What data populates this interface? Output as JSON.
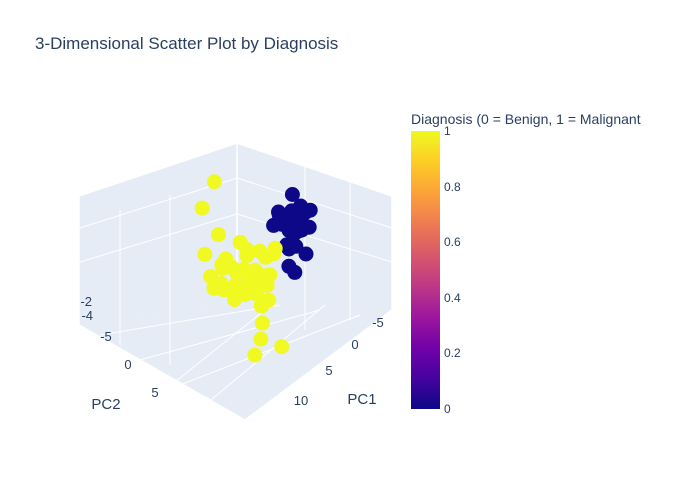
{
  "chart_data": {
    "type": "scatter3d",
    "title": "3-Dimensional Scatter Plot by Diagnosis",
    "axes": {
      "x": {
        "label": "PC1",
        "ticks": [
          "-5",
          "0",
          "5",
          "10"
        ]
      },
      "y": {
        "label": "PC2",
        "ticks": [
          "-5",
          "0",
          "5"
        ]
      },
      "z": {
        "label": "",
        "ticks": [
          "-4",
          "-2"
        ]
      }
    },
    "colorbar": {
      "title": "Diagnosis (0 = Benign, 1 = Malignant",
      "range": [
        0,
        1
      ],
      "ticks": [
        "0",
        "0.2",
        "0.4",
        "0.6",
        "0.8",
        "1"
      ],
      "colorscale": "plasma"
    },
    "series": [
      {
        "name": "",
        "value": 0,
        "color": "#0d0887",
        "points": [
          [
            -1.5,
            -4.5,
            -0.5
          ],
          [
            -2,
            -5,
            0
          ],
          [
            -1,
            -4,
            0.5
          ],
          [
            -2.5,
            -4,
            -0.3
          ],
          [
            -1.2,
            -5.5,
            0.2
          ],
          [
            -0.5,
            -4.8,
            -0.4
          ],
          [
            -1.8,
            -3.5,
            0.8
          ],
          [
            -2.8,
            -5.2,
            0.3
          ],
          [
            -0.2,
            -5.5,
            -0.2
          ],
          [
            -1,
            -6,
            0.6
          ],
          [
            0,
            -4,
            -1.2
          ],
          [
            -3.2,
            -4.6,
            -0.8
          ],
          [
            -1.6,
            -5.8,
            1
          ],
          [
            -2.2,
            -3,
            0
          ],
          [
            0.4,
            -5,
            0.1
          ],
          [
            -1.4,
            -4.2,
            -1.5
          ],
          [
            -0.8,
            -6.5,
            -0.5
          ],
          [
            -2.6,
            -6,
            -0.1
          ],
          [
            -3,
            -3.8,
            0.5
          ],
          [
            0.8,
            -4.5,
            -0.8
          ],
          [
            1.5,
            -3.5,
            -1.8
          ],
          [
            2,
            -4,
            -2.2
          ],
          [
            1.2,
            -5.5,
            -1.5
          ],
          [
            -3.5,
            -5.5,
            1.2
          ],
          [
            -2,
            -7,
            0.2
          ]
        ]
      },
      {
        "name": "",
        "value": 1,
        "color": "#f0f921",
        "points": [
          [
            3,
            2,
            0
          ],
          [
            4,
            3,
            0.5
          ],
          [
            5,
            1,
            -0.5
          ],
          [
            2,
            4,
            0.2
          ],
          [
            6,
            2,
            1
          ],
          [
            3.5,
            0,
            -0.8
          ],
          [
            4.5,
            5,
            0.3
          ],
          [
            2.5,
            1.5,
            1.2
          ],
          [
            5.5,
            3.5,
            -0.2
          ],
          [
            3,
            3,
            -1
          ],
          [
            6.5,
            0.5,
            0.4
          ],
          [
            4,
            -1,
            0.8
          ],
          [
            2,
            2.5,
            -0.5
          ],
          [
            7,
            2.5,
            0.1
          ],
          [
            5,
            4,
            1.5
          ],
          [
            3.8,
            1,
            0
          ],
          [
            4.2,
            2.2,
            -1.4
          ],
          [
            1.5,
            3.5,
            0.6
          ],
          [
            5.8,
            1.5,
            -0.9
          ],
          [
            3.2,
            4.5,
            1.1
          ],
          [
            8,
            1,
            0.5
          ],
          [
            2.8,
            -0.5,
            0.2
          ],
          [
            4.8,
            0.8,
            1.8
          ],
          [
            6,
            4,
            -0.6
          ],
          [
            1,
            1,
            0
          ],
          [
            3.6,
            5.5,
            -0.3
          ],
          [
            7.5,
            3,
            1.2
          ],
          [
            2.2,
            0.5,
            -1.2
          ],
          [
            5.2,
            -0.2,
            -0.1
          ],
          [
            4,
            6,
            0.9
          ],
          [
            9,
            2,
            -0.4
          ],
          [
            1.8,
            2,
            1.6
          ],
          [
            6.8,
            1.2,
            -1.5
          ],
          [
            3,
            -1.5,
            0.7
          ],
          [
            5.5,
            5,
            0.2
          ],
          [
            8.5,
            3.5,
            0.9
          ],
          [
            10,
            1.5,
            0.3
          ],
          [
            11,
            2.5,
            -0.8
          ],
          [
            12,
            3,
            -1.5
          ],
          [
            2,
            6,
            1.8
          ],
          [
            0.5,
            4,
            2.2
          ],
          [
            -2,
            5,
            3.5
          ],
          [
            -4,
            3,
            4.2
          ],
          [
            13,
            1,
            -2.2
          ],
          [
            11.5,
            3.5,
            -2.8
          ]
        ]
      }
    ]
  }
}
